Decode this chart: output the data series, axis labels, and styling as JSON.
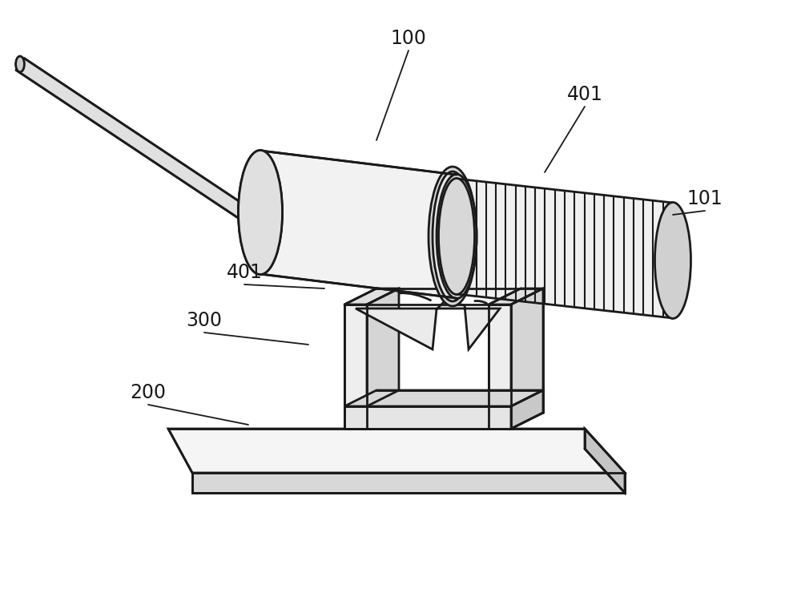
{
  "bg": "#ffffff",
  "lc": "#1a1a1a",
  "lw": 2.0,
  "fig_w": 10,
  "fig_h": 7.5,
  "dpi": 100,
  "labels": [
    "100",
    "401",
    "101",
    "401",
    "300",
    "200"
  ],
  "lx": [
    510,
    730,
    880,
    305,
    255,
    185
  ],
  "ly": [
    48,
    118,
    248,
    340,
    400,
    490
  ],
  "ax": [
    470,
    680,
    840,
    405,
    385,
    310
  ],
  "ay": [
    175,
    215,
    268,
    360,
    430,
    530
  ],
  "lfs": 17
}
